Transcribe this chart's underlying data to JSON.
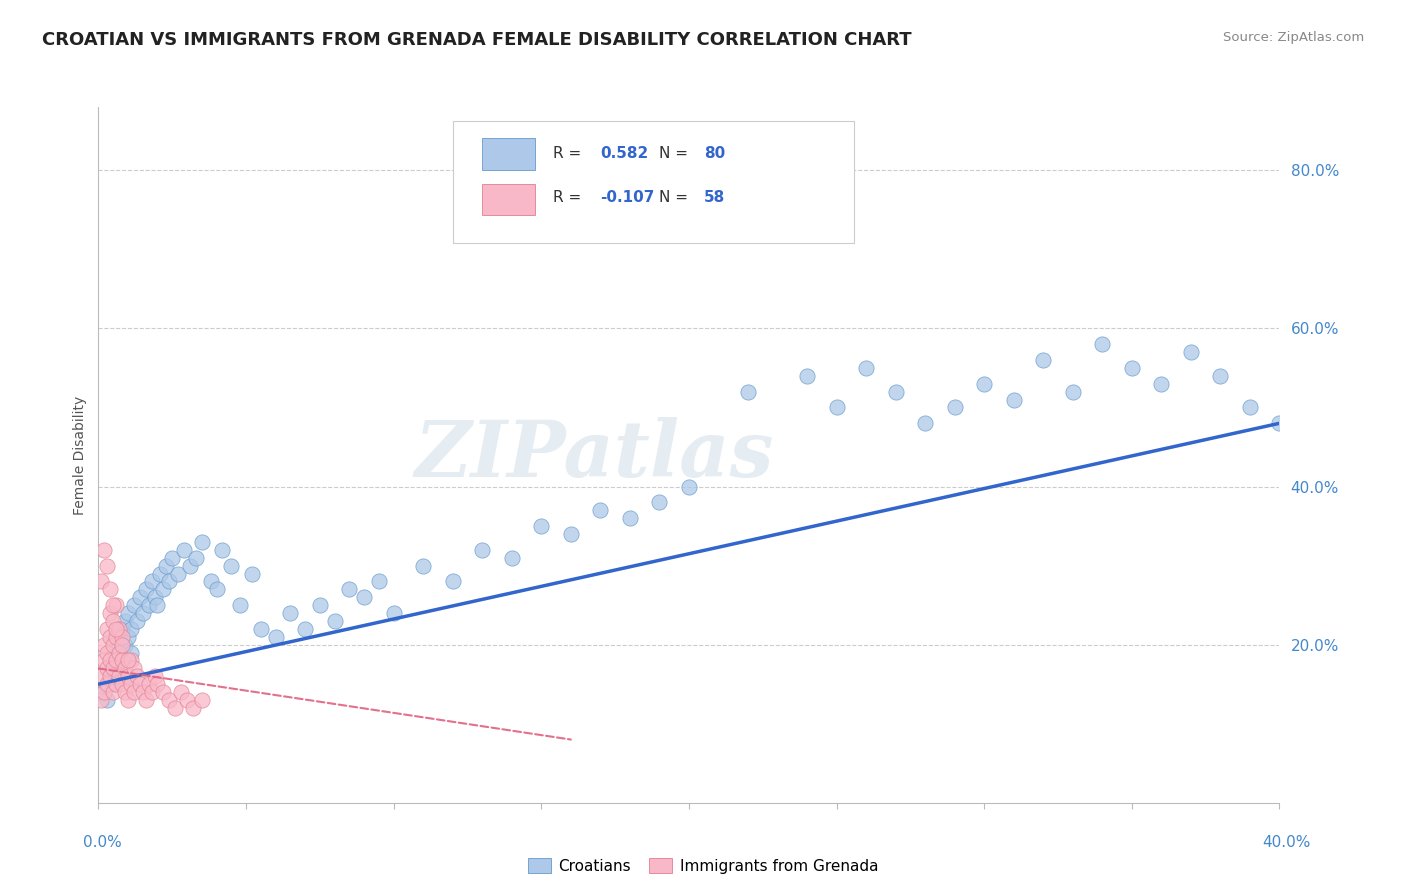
{
  "title": "CROATIAN VS IMMIGRANTS FROM GRENADA FEMALE DISABILITY CORRELATION CHART",
  "source": "Source: ZipAtlas.com",
  "ylabel": "Female Disability",
  "xmin": 0.0,
  "xmax": 0.4,
  "ymin": 0.0,
  "ymax": 0.88,
  "yticks": [
    0.0,
    0.2,
    0.4,
    0.6,
    0.8
  ],
  "ytick_labels": [
    "",
    "20.0%",
    "40.0%",
    "60.0%",
    "80.0%"
  ],
  "blue_R": 0.582,
  "blue_N": 80,
  "pink_R": -0.107,
  "pink_N": 58,
  "blue_color": "#adc8e8",
  "blue_edge_color": "#6699cc",
  "blue_line_color": "#3366cc",
  "pink_color": "#f9b8c8",
  "pink_edge_color": "#e08090",
  "pink_line_color": "#e06080",
  "watermark": "ZIPatlas",
  "legend_label_blue": "Croatians",
  "legend_label_pink": "Immigrants from Grenada",
  "blue_points_x": [
    0.002,
    0.003,
    0.004,
    0.005,
    0.005,
    0.006,
    0.006,
    0.007,
    0.007,
    0.008,
    0.008,
    0.009,
    0.009,
    0.01,
    0.01,
    0.011,
    0.011,
    0.012,
    0.013,
    0.014,
    0.015,
    0.016,
    0.017,
    0.018,
    0.019,
    0.02,
    0.021,
    0.022,
    0.023,
    0.024,
    0.025,
    0.027,
    0.029,
    0.031,
    0.033,
    0.035,
    0.038,
    0.04,
    0.042,
    0.045,
    0.048,
    0.052,
    0.055,
    0.06,
    0.065,
    0.07,
    0.075,
    0.08,
    0.085,
    0.09,
    0.095,
    0.1,
    0.11,
    0.12,
    0.13,
    0.14,
    0.15,
    0.16,
    0.17,
    0.18,
    0.19,
    0.2,
    0.22,
    0.24,
    0.25,
    0.26,
    0.27,
    0.28,
    0.29,
    0.3,
    0.31,
    0.32,
    0.33,
    0.34,
    0.35,
    0.36,
    0.37,
    0.38,
    0.39,
    0.4
  ],
  "blue_points_y": [
    0.14,
    0.13,
    0.16,
    0.15,
    0.18,
    0.17,
    0.2,
    0.19,
    0.21,
    0.18,
    0.22,
    0.2,
    0.23,
    0.21,
    0.24,
    0.19,
    0.22,
    0.25,
    0.23,
    0.26,
    0.24,
    0.27,
    0.25,
    0.28,
    0.26,
    0.25,
    0.29,
    0.27,
    0.3,
    0.28,
    0.31,
    0.29,
    0.32,
    0.3,
    0.31,
    0.33,
    0.28,
    0.27,
    0.32,
    0.3,
    0.25,
    0.29,
    0.22,
    0.21,
    0.24,
    0.22,
    0.25,
    0.23,
    0.27,
    0.26,
    0.28,
    0.24,
    0.3,
    0.28,
    0.32,
    0.31,
    0.35,
    0.34,
    0.37,
    0.36,
    0.38,
    0.4,
    0.52,
    0.54,
    0.5,
    0.55,
    0.52,
    0.48,
    0.5,
    0.53,
    0.51,
    0.56,
    0.52,
    0.58,
    0.55,
    0.53,
    0.57,
    0.54,
    0.5,
    0.48
  ],
  "pink_points_x": [
    0.001,
    0.001,
    0.002,
    0.002,
    0.002,
    0.003,
    0.003,
    0.003,
    0.003,
    0.004,
    0.004,
    0.004,
    0.004,
    0.005,
    0.005,
    0.005,
    0.005,
    0.006,
    0.006,
    0.006,
    0.006,
    0.007,
    0.007,
    0.007,
    0.008,
    0.008,
    0.008,
    0.009,
    0.009,
    0.01,
    0.01,
    0.011,
    0.011,
    0.012,
    0.012,
    0.013,
    0.014,
    0.015,
    0.016,
    0.017,
    0.018,
    0.019,
    0.02,
    0.022,
    0.024,
    0.026,
    0.028,
    0.03,
    0.032,
    0.035,
    0.001,
    0.002,
    0.003,
    0.004,
    0.005,
    0.006,
    0.008,
    0.01
  ],
  "pink_points_y": [
    0.13,
    0.16,
    0.14,
    0.18,
    0.2,
    0.15,
    0.17,
    0.19,
    0.22,
    0.16,
    0.18,
    0.21,
    0.24,
    0.14,
    0.17,
    0.2,
    0.23,
    0.15,
    0.18,
    0.21,
    0.25,
    0.16,
    0.19,
    0.22,
    0.15,
    0.18,
    0.21,
    0.14,
    0.17,
    0.13,
    0.16,
    0.15,
    0.18,
    0.14,
    0.17,
    0.16,
    0.15,
    0.14,
    0.13,
    0.15,
    0.14,
    0.16,
    0.15,
    0.14,
    0.13,
    0.12,
    0.14,
    0.13,
    0.12,
    0.13,
    0.28,
    0.32,
    0.3,
    0.27,
    0.25,
    0.22,
    0.2,
    0.18
  ],
  "blue_trend_x0": 0.0,
  "blue_trend_x1": 0.4,
  "blue_trend_y0": 0.15,
  "blue_trend_y1": 0.48,
  "pink_trend_x0": 0.0,
  "pink_trend_x1": 0.16,
  "pink_trend_y0": 0.17,
  "pink_trend_y1": 0.08
}
